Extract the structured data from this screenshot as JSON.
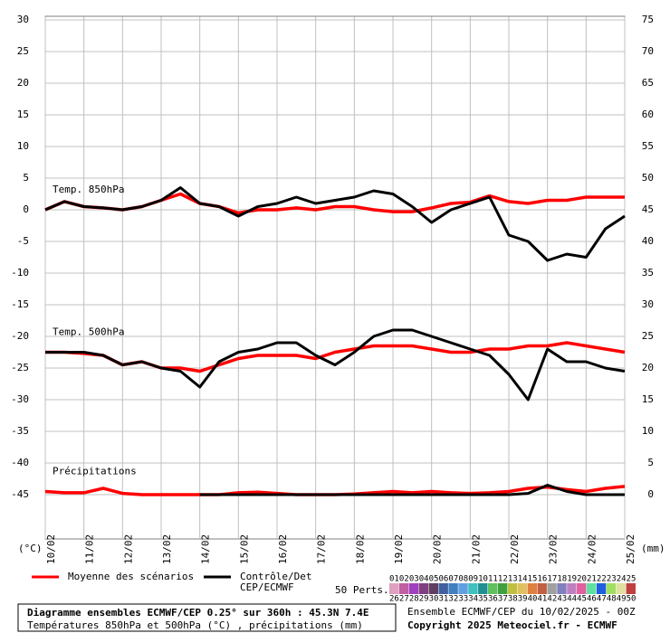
{
  "chart_data": {
    "type": "line",
    "categories": [
      "10/02",
      null,
      "11/02",
      null,
      "12/02",
      null,
      "13/02",
      null,
      "14/02",
      null,
      "15/02",
      null,
      "16/02",
      null,
      "17/02",
      null,
      "18/02",
      null,
      "19/02",
      null,
      "20/02",
      null,
      "21/02",
      null,
      "22/02",
      null,
      "23/02",
      null,
      "24/02",
      null,
      "25/02"
    ],
    "ylim": [
      -52,
      30.5
    ],
    "yticks": [
      30,
      25,
      20,
      15,
      10,
      5,
      0,
      -5,
      -10,
      -15,
      -20,
      -25,
      -30,
      -35,
      -40,
      -45
    ],
    "y2lim": [
      -7,
      75.5
    ],
    "y2ticks": [
      75,
      70,
      65,
      60,
      55,
      50,
      45,
      40,
      35,
      30,
      25,
      20,
      15,
      10,
      5,
      0
    ],
    "ylabel": "(°C)",
    "y2label": "(mm)",
    "grid": true,
    "panels": [
      {
        "label": "Temp. 850hPa",
        "series": [
          {
            "color": "#ff0000",
            "width": 3.5,
            "values": [
              0,
              1.3,
              0.5,
              0.3,
              0,
              0.5,
              1.5,
              2.5,
              1,
              0.5,
              -0.5,
              0,
              0,
              0.3,
              0,
              0.5,
              0.5,
              0,
              -0.3,
              -0.3,
              0.3,
              1,
              1.2,
              2.2,
              1.3,
              1,
              1.5,
              1.5,
              2,
              2,
              2
            ]
          },
          {
            "color": "#000000",
            "width": 3,
            "values": [
              0,
              1.3,
              0.5,
              0.3,
              0,
              0.5,
              1.5,
              3.5,
              1,
              0.5,
              -1,
              0.5,
              1,
              2,
              1,
              1.5,
              2,
              3,
              2.5,
              0.5,
              -2,
              0,
              1,
              2,
              -4,
              -5,
              -8,
              -7,
              -7.5,
              -3,
              -1
            ]
          }
        ]
      },
      {
        "label": "Temp. 500hPa",
        "series": [
          {
            "color": "#ff0000",
            "width": 3.5,
            "values": [
              -22.5,
              -22.5,
              -22.7,
              -23,
              -24.5,
              -24,
              -25,
              -25,
              -25.5,
              -24.5,
              -23.5,
              -23,
              -23,
              -23,
              -23.5,
              -22.5,
              -22,
              -21.5,
              -21.5,
              -21.5,
              -22,
              -22.5,
              -22.5,
              -22,
              -22,
              -21.5,
              -21.5,
              -21,
              -21.5,
              -22,
              -22.5
            ]
          },
          {
            "color": "#000000",
            "width": 3,
            "values": [
              -22.5,
              -22.5,
              -22.5,
              -23,
              -24.5,
              -24,
              -25,
              -25.5,
              -28,
              -24,
              -22.5,
              -22,
              -21,
              -21,
              -23,
              -24.5,
              -22.5,
              -20,
              -19,
              -19,
              -20,
              -21,
              -22,
              -23,
              -26,
              -30,
              -22,
              -24,
              -24,
              -25,
              -25.5
            ]
          }
        ]
      },
      {
        "label": "Précipitations",
        "axis": "y2",
        "series": [
          {
            "color": "#ff0000",
            "width": 3.5,
            "values": [
              0.5,
              0.3,
              0.3,
              1,
              0.2,
              0,
              0,
              0,
              0,
              0,
              0.3,
              0.4,
              0.2,
              0,
              0,
              0,
              0.1,
              0.3,
              0.5,
              0.3,
              0.5,
              0.3,
              0.2,
              0.3,
              0.5,
              1,
              1.2,
              0.8,
              0.5,
              1,
              1.3
            ]
          },
          {
            "color": "#000000",
            "width": 3,
            "values": [
              null,
              null,
              null,
              null,
              null,
              null,
              null,
              null,
              0,
              0,
              0,
              0,
              0,
              0,
              0,
              0,
              0,
              0,
              0,
              0,
              0,
              0,
              0,
              0,
              0,
              0.2,
              1.5,
              0.5,
              0,
              0,
              0
            ]
          }
        ]
      }
    ],
    "legend": [
      {
        "label": [
          "Moyenne des scénarios"
        ],
        "color": "#ff0000"
      },
      {
        "label": [
          "Contrôle/Det",
          "CEP/ECMWF"
        ],
        "color": "#000000"
      }
    ],
    "members": {
      "title": "50 Perts.",
      "labels": [
        "01",
        "02",
        "03",
        "04",
        "05",
        "06",
        "07",
        "08",
        "09",
        "10",
        "11",
        "12",
        "13",
        "14",
        "15",
        "16",
        "17",
        "18",
        "19",
        "20",
        "21",
        "22",
        "23",
        "24",
        "25",
        "26",
        "27",
        "28",
        "29",
        "30",
        "31",
        "32",
        "33",
        "34",
        "35",
        "36",
        "37",
        "38",
        "39",
        "40",
        "41",
        "42",
        "43",
        "44",
        "45",
        "46",
        "47",
        "48",
        "49",
        "50"
      ],
      "colors": [
        "#e0a0c0",
        "#c060a0",
        "#a040c0",
        "#804080",
        "#604060",
        "#4060a0",
        "#4080c0",
        "#60a0e0",
        "#40c0c0",
        "#209090",
        "#60c060",
        "#40a040",
        "#c0c040",
        "#e0c060",
        "#e08040",
        "#c06040",
        "#a0a0a0",
        "#8080c0",
        "#c080c0",
        "#e060a0",
        "#60e0a0",
        "#2060e0",
        "#a0e060",
        "#e0e0a0",
        "#c04040"
      ]
    }
  },
  "footer": {
    "left": [
      "Diagramme ensembles ECMWF/CEP 0.25° sur 360h : 45.3N 7.4E",
      "Températures 850hPa et 500hPa (°C) , précipitations (mm)"
    ],
    "right": [
      "Ensemble ECMWF/CEP du 10/02/2025 - 00Z",
      "Copyright 2025 Meteociel.fr - ECMWF"
    ]
  }
}
